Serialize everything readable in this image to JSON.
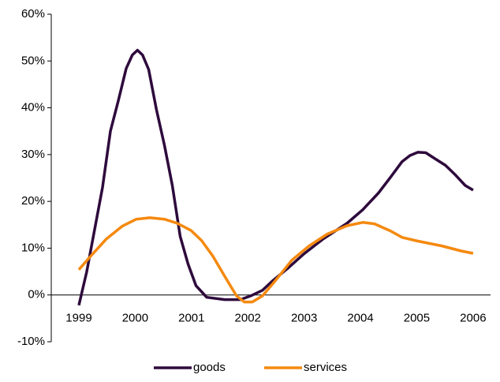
{
  "chart_data": {
    "type": "line",
    "xlim": [
      1998.51,
      2006.31
    ],
    "xticks": [
      1999,
      2000,
      2001,
      2002,
      2003,
      2004,
      2005,
      2006
    ],
    "ylim": [
      -10,
      60
    ],
    "yticks": [
      {
        "value": -10,
        "label": "-10%"
      },
      {
        "value": 0,
        "label": "0%"
      },
      {
        "value": 10,
        "label": "10%"
      },
      {
        "value": 20,
        "label": "20%"
      },
      {
        "value": 30,
        "label": "30%"
      },
      {
        "value": 40,
        "label": "40%"
      },
      {
        "value": 50,
        "label": "50%"
      },
      {
        "value": 60,
        "label": "60%"
      }
    ],
    "grid": false,
    "legend": "bottom",
    "series": [
      {
        "name": "goods",
        "color": "#2e0a3c",
        "x": [
          1999.0,
          1999.14,
          1999.28,
          1999.42,
          1999.56,
          1999.7,
          1999.84,
          1999.95,
          2000.04,
          2000.13,
          2000.24,
          2000.38,
          2000.52,
          2000.66,
          2000.8,
          2000.94,
          2001.08,
          2001.27,
          2001.59,
          2001.87,
          2002.05,
          2002.26,
          2002.43,
          2002.71,
          2003.0,
          2003.34,
          2003.76,
          2004.04,
          2004.32,
          2004.53,
          2004.74,
          2004.88,
          2005.02,
          2005.16,
          2005.3,
          2005.51,
          2005.69,
          2005.86,
          2006.0
        ],
        "values": [
          -2.2,
          5,
          14,
          23,
          35,
          41.5,
          48.4,
          51.3,
          52.3,
          51.3,
          48.2,
          39.5,
          32,
          23.4,
          12.5,
          6.6,
          2,
          -0.5,
          -1,
          -1,
          -0.2,
          1,
          2.9,
          5.7,
          8.8,
          12,
          15.3,
          18.2,
          21.8,
          25.1,
          28.5,
          29.8,
          30.5,
          30.4,
          29.3,
          27.7,
          25.6,
          23.4,
          22.4
        ]
      },
      {
        "name": "services",
        "color": "#f5890f",
        "x": [
          1999.0,
          1999.21,
          1999.49,
          1999.77,
          2000.02,
          2000.26,
          2000.52,
          2000.75,
          2000.99,
          2001.18,
          2001.38,
          2001.59,
          2001.8,
          2001.94,
          2002.08,
          2002.26,
          2002.5,
          2002.78,
          2003.09,
          2003.41,
          2003.76,
          2004.04,
          2004.25,
          2004.53,
          2004.74,
          2005.02,
          2005.44,
          2005.79,
          2006.0
        ],
        "values": [
          5.4,
          8.3,
          12,
          14.7,
          16.2,
          16.5,
          16.2,
          15.3,
          13.8,
          11.6,
          8.3,
          4,
          -0.2,
          -1.5,
          -1.5,
          -0.2,
          3.2,
          7.4,
          10.5,
          13,
          14.8,
          15.5,
          15.2,
          13.7,
          12.3,
          11.5,
          10.5,
          9.4,
          8.9
        ]
      }
    ]
  }
}
